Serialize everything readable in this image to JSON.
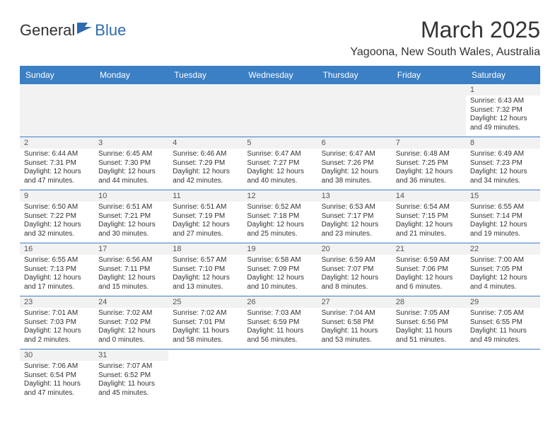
{
  "logo": {
    "text1": "General",
    "text2": "Blue"
  },
  "title": "March 2025",
  "location": "Yagoona, New South Wales, Australia",
  "colors": {
    "header_bg": "#3b7fc4",
    "header_text": "#ffffff",
    "border": "#3b7fc4",
    "empty_bg": "#f2f2f2",
    "daynum_bg": "#f2f2f2",
    "text": "#333333"
  },
  "days_of_week": [
    "Sunday",
    "Monday",
    "Tuesday",
    "Wednesday",
    "Thursday",
    "Friday",
    "Saturday"
  ],
  "weeks": [
    [
      null,
      null,
      null,
      null,
      null,
      null,
      {
        "n": "1",
        "sunrise": "6:43 AM",
        "sunset": "7:32 PM",
        "daylight": "12 hours and 49 minutes."
      }
    ],
    [
      {
        "n": "2",
        "sunrise": "6:44 AM",
        "sunset": "7:31 PM",
        "daylight": "12 hours and 47 minutes."
      },
      {
        "n": "3",
        "sunrise": "6:45 AM",
        "sunset": "7:30 PM",
        "daylight": "12 hours and 44 minutes."
      },
      {
        "n": "4",
        "sunrise": "6:46 AM",
        "sunset": "7:29 PM",
        "daylight": "12 hours and 42 minutes."
      },
      {
        "n": "5",
        "sunrise": "6:47 AM",
        "sunset": "7:27 PM",
        "daylight": "12 hours and 40 minutes."
      },
      {
        "n": "6",
        "sunrise": "6:47 AM",
        "sunset": "7:26 PM",
        "daylight": "12 hours and 38 minutes."
      },
      {
        "n": "7",
        "sunrise": "6:48 AM",
        "sunset": "7:25 PM",
        "daylight": "12 hours and 36 minutes."
      },
      {
        "n": "8",
        "sunrise": "6:49 AM",
        "sunset": "7:23 PM",
        "daylight": "12 hours and 34 minutes."
      }
    ],
    [
      {
        "n": "9",
        "sunrise": "6:50 AM",
        "sunset": "7:22 PM",
        "daylight": "12 hours and 32 minutes."
      },
      {
        "n": "10",
        "sunrise": "6:51 AM",
        "sunset": "7:21 PM",
        "daylight": "12 hours and 30 minutes."
      },
      {
        "n": "11",
        "sunrise": "6:51 AM",
        "sunset": "7:19 PM",
        "daylight": "12 hours and 27 minutes."
      },
      {
        "n": "12",
        "sunrise": "6:52 AM",
        "sunset": "7:18 PM",
        "daylight": "12 hours and 25 minutes."
      },
      {
        "n": "13",
        "sunrise": "6:53 AM",
        "sunset": "7:17 PM",
        "daylight": "12 hours and 23 minutes."
      },
      {
        "n": "14",
        "sunrise": "6:54 AM",
        "sunset": "7:15 PM",
        "daylight": "12 hours and 21 minutes."
      },
      {
        "n": "15",
        "sunrise": "6:55 AM",
        "sunset": "7:14 PM",
        "daylight": "12 hours and 19 minutes."
      }
    ],
    [
      {
        "n": "16",
        "sunrise": "6:55 AM",
        "sunset": "7:13 PM",
        "daylight": "12 hours and 17 minutes."
      },
      {
        "n": "17",
        "sunrise": "6:56 AM",
        "sunset": "7:11 PM",
        "daylight": "12 hours and 15 minutes."
      },
      {
        "n": "18",
        "sunrise": "6:57 AM",
        "sunset": "7:10 PM",
        "daylight": "12 hours and 13 minutes."
      },
      {
        "n": "19",
        "sunrise": "6:58 AM",
        "sunset": "7:09 PM",
        "daylight": "12 hours and 10 minutes."
      },
      {
        "n": "20",
        "sunrise": "6:59 AM",
        "sunset": "7:07 PM",
        "daylight": "12 hours and 8 minutes."
      },
      {
        "n": "21",
        "sunrise": "6:59 AM",
        "sunset": "7:06 PM",
        "daylight": "12 hours and 6 minutes."
      },
      {
        "n": "22",
        "sunrise": "7:00 AM",
        "sunset": "7:05 PM",
        "daylight": "12 hours and 4 minutes."
      }
    ],
    [
      {
        "n": "23",
        "sunrise": "7:01 AM",
        "sunset": "7:03 PM",
        "daylight": "12 hours and 2 minutes."
      },
      {
        "n": "24",
        "sunrise": "7:02 AM",
        "sunset": "7:02 PM",
        "daylight": "12 hours and 0 minutes."
      },
      {
        "n": "25",
        "sunrise": "7:02 AM",
        "sunset": "7:01 PM",
        "daylight": "11 hours and 58 minutes."
      },
      {
        "n": "26",
        "sunrise": "7:03 AM",
        "sunset": "6:59 PM",
        "daylight": "11 hours and 56 minutes."
      },
      {
        "n": "27",
        "sunrise": "7:04 AM",
        "sunset": "6:58 PM",
        "daylight": "11 hours and 53 minutes."
      },
      {
        "n": "28",
        "sunrise": "7:05 AM",
        "sunset": "6:56 PM",
        "daylight": "11 hours and 51 minutes."
      },
      {
        "n": "29",
        "sunrise": "7:05 AM",
        "sunset": "6:55 PM",
        "daylight": "11 hours and 49 minutes."
      }
    ],
    [
      {
        "n": "30",
        "sunrise": "7:06 AM",
        "sunset": "6:54 PM",
        "daylight": "11 hours and 47 minutes."
      },
      {
        "n": "31",
        "sunrise": "7:07 AM",
        "sunset": "6:52 PM",
        "daylight": "11 hours and 45 minutes."
      },
      null,
      null,
      null,
      null,
      null
    ]
  ],
  "labels": {
    "sunrise": "Sunrise:",
    "sunset": "Sunset:",
    "daylight": "Daylight:"
  }
}
